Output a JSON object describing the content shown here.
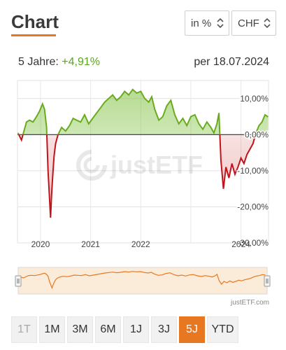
{
  "header": {
    "title": "Chart",
    "unit_select": "in %",
    "currency_select": "CHF"
  },
  "summary": {
    "period_label": "5 Jahre:",
    "performance": "+4,91%",
    "as_of": "per 18.07.2024"
  },
  "colors": {
    "accent": "#e87722",
    "positive": "#6aab1e",
    "negative": "#c0141c"
  },
  "chart_data": {
    "type": "area",
    "y_ticks": [
      "10,00%",
      "0,00%",
      "-10,00%",
      "-20,00%",
      "-30,00%"
    ],
    "x_ticks": [
      "2020",
      "2021",
      "2022",
      "2024"
    ],
    "ylim": [
      -30,
      15
    ],
    "xlim": [
      2019.54,
      2024.55
    ],
    "grid": true,
    "baseline": 0,
    "series": [
      {
        "x": [
          2019.55,
          2019.62,
          2019.68,
          2019.72,
          2019.78,
          2019.85,
          2019.92,
          2019.98,
          2020.04,
          2020.08,
          2020.12,
          2020.15,
          2020.18,
          2020.2,
          2020.22,
          2020.24,
          2020.27,
          2020.3,
          2020.35,
          2020.42,
          2020.5,
          2020.58,
          2020.65,
          2020.72,
          2020.8,
          2020.88,
          2020.96,
          2021.04,
          2021.12,
          2021.2,
          2021.28,
          2021.36,
          2021.44,
          2021.52,
          2021.6,
          2021.68,
          2021.76,
          2021.84,
          2021.92,
          2022.0,
          2022.08,
          2022.16,
          2022.22,
          2022.28,
          2022.36,
          2022.44,
          2022.52,
          2022.6,
          2022.68,
          2022.76,
          2022.84,
          2022.92,
          2023.0,
          2023.08,
          2023.16,
          2023.24,
          2023.32,
          2023.4,
          2023.46,
          2023.52,
          2023.56,
          2023.6,
          2023.65,
          2023.7,
          2023.76,
          2023.82,
          2023.88,
          2023.94,
          2024.0,
          2024.06,
          2024.12,
          2024.18,
          2024.24,
          2024.3,
          2024.36,
          2024.42,
          2024.48,
          2024.54
        ],
        "y": [
          0.5,
          -1.5,
          1.5,
          3.5,
          4.0,
          3.5,
          5.0,
          6.5,
          8.5,
          7.0,
          2.0,
          -10.0,
          -18.0,
          -23.0,
          -17.0,
          -12.0,
          -6.0,
          -2.5,
          0.0,
          2.0,
          1.0,
          2.5,
          4.5,
          4.0,
          3.5,
          5.5,
          3.0,
          4.5,
          6.0,
          7.5,
          9.0,
          10.0,
          11.0,
          9.5,
          10.5,
          12.0,
          11.0,
          12.5,
          11.5,
          12.0,
          10.0,
          9.0,
          10.5,
          7.0,
          4.0,
          5.0,
          8.0,
          9.5,
          5.5,
          3.0,
          4.5,
          2.5,
          5.0,
          5.5,
          3.0,
          1.5,
          3.5,
          2.0,
          0.5,
          3.0,
          6.0,
          -7.0,
          -15.0,
          -9.0,
          -12.0,
          -8.0,
          -11.0,
          -9.0,
          -6.5,
          -8.0,
          -5.5,
          -4.0,
          -2.5,
          0.5,
          2.5,
          3.5,
          5.5,
          4.91
        ]
      }
    ]
  },
  "periods": [
    {
      "label": "1T",
      "state": "disabled"
    },
    {
      "label": "1M",
      "state": "normal"
    },
    {
      "label": "3M",
      "state": "normal"
    },
    {
      "label": "6M",
      "state": "normal"
    },
    {
      "label": "1J",
      "state": "normal"
    },
    {
      "label": "3J",
      "state": "normal"
    },
    {
      "label": "5J",
      "state": "active"
    },
    {
      "label": "YTD",
      "state": "normal"
    }
  ],
  "watermark": "justETF",
  "credit": "justETF.com"
}
